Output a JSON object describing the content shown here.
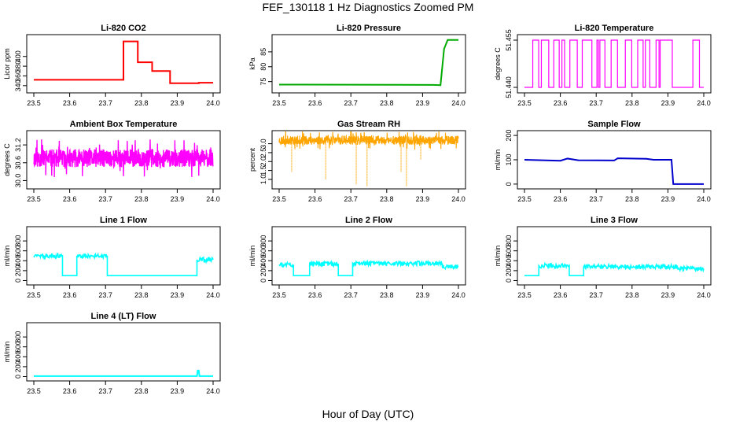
{
  "figure": {
    "title": "FEF_130118 1 Hz Diagnostics Zoomed PM",
    "xlabel": "Hour of Day (UTC)"
  },
  "chart_data": [
    {
      "id": "co2",
      "type": "line",
      "title": "Li-820 CO2",
      "ylabel": "Licor ppm",
      "color": "#ff0000",
      "xlim": [
        23.5,
        24.0
      ],
      "ylim": [
        330,
        440
      ],
      "xticks": [
        23.5,
        23.6,
        23.7,
        23.8,
        23.9,
        24.0
      ],
      "xtick_labels": [
        "23.5",
        "23.6",
        "23.7",
        "23.8",
        "23.9",
        "24.0"
      ],
      "yticks": [
        340,
        360,
        380,
        400
      ],
      "ytick_labels": [
        "340",
        "360",
        "380",
        "400"
      ],
      "series": [
        {
          "name": "CO2",
          "x": [
            23.5,
            23.75,
            23.75,
            23.79,
            23.79,
            23.83,
            23.83,
            23.88,
            23.88,
            23.96,
            23.96,
            24.0
          ],
          "y": [
            352,
            352,
            431,
            431,
            388,
            388,
            370,
            370,
            345,
            345,
            346,
            346
          ]
        }
      ]
    },
    {
      "id": "pressure",
      "type": "line",
      "title": "Li-820 Pressure",
      "ylabel": "kPa",
      "color": "#00aa00",
      "xlim": [
        23.5,
        24.0
      ],
      "ylim": [
        72,
        90
      ],
      "xticks": [
        23.5,
        23.6,
        23.7,
        23.8,
        23.9,
        24.0
      ],
      "xtick_labels": [
        "23.5",
        "23.6",
        "23.7",
        "23.8",
        "23.9",
        "24.0"
      ],
      "yticks": [
        75,
        80,
        85
      ],
      "ytick_labels": [
        "75",
        "80",
        "85"
      ],
      "series": [
        {
          "name": "Pressure",
          "x": [
            23.5,
            23.93,
            23.95,
            23.96,
            23.97,
            24.0
          ],
          "y": [
            74.0,
            73.9,
            73.8,
            86.0,
            89.0,
            89.0
          ]
        }
      ]
    },
    {
      "id": "licor-temp",
      "type": "line",
      "title": "Li-820 Temperature",
      "ylabel": "degrees C",
      "color": "#ff00ff",
      "xlim": [
        23.5,
        24.0
      ],
      "ylim": [
        51.439,
        51.456
      ],
      "xticks": [
        23.5,
        23.6,
        23.7,
        23.8,
        23.9,
        24.0
      ],
      "xtick_labels": [
        "23.5",
        "23.6",
        "23.7",
        "23.8",
        "23.9",
        "24.0"
      ],
      "yticks": [
        51.44,
        51.455
      ],
      "ytick_labels": [
        "51.440",
        "51.455"
      ],
      "series": [
        {
          "name": "Temperature",
          "low": 51.44,
          "high": 51.455,
          "x": [
            23.5,
            24.0
          ],
          "y": [
            51.44,
            51.455
          ]
        }
      ]
    },
    {
      "id": "ambient-temp",
      "type": "line",
      "title": "Ambient Box Temperature",
      "ylabel": "degrees C",
      "color": "#ff00ff",
      "xlim": [
        23.5,
        24.0
      ],
      "ylim": [
        29.8,
        31.6
      ],
      "xticks": [
        23.5,
        23.6,
        23.7,
        23.8,
        23.9,
        24.0
      ],
      "xtick_labels": [
        "23.5",
        "23.6",
        "23.7",
        "23.8",
        "23.9",
        "24.0"
      ],
      "yticks": [
        30.0,
        30.6,
        31.2
      ],
      "ytick_labels": [
        "30.0",
        "30.6",
        "31.2"
      ],
      "series": [
        {
          "name": "Ambient Temperature",
          "mean": 30.75,
          "spread": 0.6,
          "x": [
            23.5,
            24.0
          ],
          "y": [
            30.75,
            30.75
          ]
        }
      ]
    },
    {
      "id": "gas-rh",
      "type": "line",
      "title": "Gas Stream RH",
      "ylabel": "percent",
      "color": "#ffa500",
      "xlim": [
        23.5,
        24.0
      ],
      "ylim": [
        0.6,
        3.6
      ],
      "xticks": [
        23.5,
        23.6,
        23.7,
        23.8,
        23.9,
        24.0
      ],
      "xtick_labels": [
        "23.5",
        "23.6",
        "23.7",
        "23.8",
        "23.9",
        "24.0"
      ],
      "yticks": [
        1.0,
        1.5,
        2.0,
        2.5,
        3.0
      ],
      "ytick_labels": [
        "1.0",
        "1.5",
        "2.0",
        "2.5",
        "3.0"
      ],
      "series": [
        {
          "name": "RH",
          "mean": 3.2,
          "spread": 0.5,
          "x": [
            23.5,
            24.0
          ],
          "y": [
            3.2,
            3.2
          ],
          "dips": [
            [
              23.535,
              1.4
            ],
            [
              23.63,
              1.0
            ],
            [
              23.715,
              0.7
            ],
            [
              23.745,
              0.6
            ],
            [
              23.84,
              1.4
            ],
            [
              23.855,
              0.6
            ],
            [
              23.895,
              2.1
            ]
          ]
        }
      ]
    },
    {
      "id": "sample-flow",
      "type": "line",
      "title": "Sample Flow",
      "ylabel": "ml/min",
      "color": "#0000cc",
      "xlim": [
        23.5,
        24.0
      ],
      "ylim": [
        -10,
        210
      ],
      "xticks": [
        23.5,
        23.6,
        23.7,
        23.8,
        23.9,
        24.0
      ],
      "xtick_labels": [
        "23.5",
        "23.6",
        "23.7",
        "23.8",
        "23.9",
        "24.0"
      ],
      "yticks": [
        0,
        100,
        200
      ],
      "ytick_labels": [
        "0",
        "100",
        "200"
      ],
      "series": [
        {
          "name": "Sample Flow",
          "x": [
            23.5,
            23.6,
            23.62,
            23.65,
            23.75,
            23.76,
            23.84,
            23.86,
            23.91,
            23.915,
            24.0
          ],
          "y": [
            100,
            96,
            105,
            98,
            97,
            106,
            104,
            100,
            100,
            0,
            0
          ]
        }
      ]
    },
    {
      "id": "line1-flow",
      "type": "line",
      "title": "Line 1 Flow",
      "ylabel": "ml/min",
      "color": "#00ffff",
      "xlim": [
        23.5,
        24.0
      ],
      "ylim": [
        -40,
        1040
      ],
      "xticks": [
        23.5,
        23.6,
        23.7,
        23.8,
        23.9,
        24.0
      ],
      "xtick_labels": [
        "23.5",
        "23.6",
        "23.7",
        "23.8",
        "23.9",
        "24.0"
      ],
      "yticks": [
        0,
        200,
        400,
        600,
        800
      ],
      "ytick_labels": [
        "0",
        "200",
        "400",
        "600",
        "800"
      ],
      "series": [
        {
          "name": "Line 1",
          "x": [
            23.5,
            23.58,
            23.58,
            23.62,
            23.62,
            23.705,
            23.705,
            23.955,
            23.955,
            24.0
          ],
          "y": [
            500,
            500,
            100,
            100,
            500,
            500,
            100,
            100,
            420,
            420
          ]
        }
      ]
    },
    {
      "id": "line2-flow",
      "type": "line",
      "title": "Line 2 Flow",
      "ylabel": "ml/min",
      "color": "#00ffff",
      "xlim": [
        23.5,
        24.0
      ],
      "ylim": [
        -40,
        1040
      ],
      "xticks": [
        23.5,
        23.6,
        23.7,
        23.8,
        23.9,
        24.0
      ],
      "xtick_labels": [
        "23.5",
        "23.6",
        "23.7",
        "23.8",
        "23.9",
        "24.0"
      ],
      "yticks": [
        0,
        200,
        400,
        600,
        800
      ],
      "ytick_labels": [
        "0",
        "200",
        "400",
        "600",
        "800"
      ],
      "series": [
        {
          "name": "Line 2",
          "x": [
            23.5,
            23.54,
            23.54,
            23.585,
            23.585,
            23.665,
            23.665,
            23.705,
            23.705,
            23.955,
            23.955,
            24.0
          ],
          "y": [
            320,
            320,
            100,
            100,
            340,
            340,
            100,
            100,
            350,
            350,
            280,
            280
          ]
        }
      ]
    },
    {
      "id": "line3-flow",
      "type": "line",
      "title": "Line 3 Flow",
      "ylabel": "ml/min",
      "color": "#00ffff",
      "xlim": [
        23.5,
        24.0
      ],
      "ylim": [
        -40,
        1040
      ],
      "xticks": [
        23.5,
        23.6,
        23.7,
        23.8,
        23.9,
        24.0
      ],
      "xtick_labels": [
        "23.5",
        "23.6",
        "23.7",
        "23.8",
        "23.9",
        "24.0"
      ],
      "yticks": [
        0,
        200,
        400,
        600,
        800
      ],
      "ytick_labels": [
        "0",
        "200",
        "400",
        "600",
        "800"
      ],
      "series": [
        {
          "name": "Line 3",
          "x": [
            23.5,
            23.54,
            23.54,
            23.625,
            23.625,
            23.665,
            23.665,
            23.925,
            23.925,
            24.0
          ],
          "y": [
            100,
            100,
            300,
            300,
            100,
            100,
            280,
            280,
            240,
            240
          ]
        }
      ]
    },
    {
      "id": "line4-flow",
      "type": "line",
      "title": "Line 4 (LT) Flow",
      "ylabel": "ml/min",
      "color": "#00ffff",
      "xlim": [
        23.5,
        24.0
      ],
      "ylim": [
        -40,
        1040
      ],
      "xticks": [
        23.5,
        23.6,
        23.7,
        23.8,
        23.9,
        24.0
      ],
      "xtick_labels": [
        "23.5",
        "23.6",
        "23.7",
        "23.8",
        "23.9",
        "24.0"
      ],
      "yticks": [
        0,
        200,
        400,
        600,
        800
      ],
      "ytick_labels": [
        "0",
        "200",
        "400",
        "600",
        "800"
      ],
      "series": [
        {
          "name": "Line 4",
          "x": [
            23.5,
            23.955,
            23.957,
            23.96,
            23.962,
            24.0
          ],
          "y": [
            10,
            10,
            120,
            120,
            10,
            10
          ]
        }
      ]
    }
  ]
}
